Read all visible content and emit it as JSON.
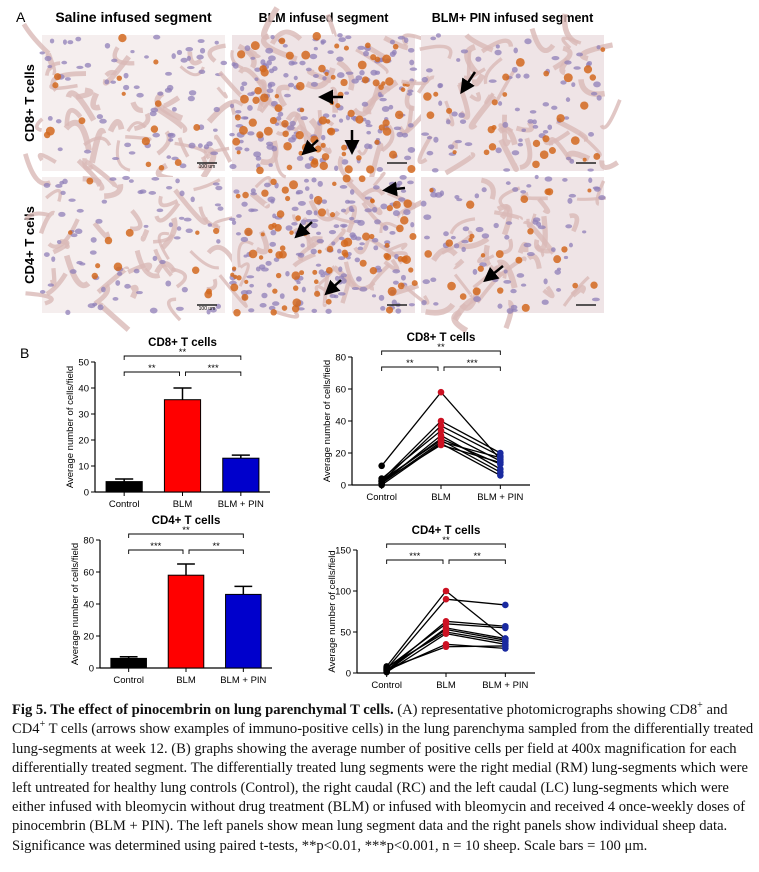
{
  "panel_a": {
    "label": "A",
    "columns": [
      "Saline infused segment",
      "BLM infused segment",
      "BLM+ PIN infused segment"
    ],
    "rows": [
      "CD8+ T cells",
      "CD4+ T cells"
    ],
    "scale_labels": [
      "100 um",
      "100 um"
    ]
  },
  "panel_b_label": "B",
  "chart_data": [
    {
      "type": "bar",
      "title": "CD8+ T cells",
      "ylabel": "Average number of cells/field",
      "categories": [
        "Control",
        "BLM",
        "BLM + PIN"
      ],
      "values": [
        4,
        35.5,
        13
      ],
      "errors": [
        1,
        4.5,
        1.2
      ],
      "colors": [
        "#000000",
        "#ff0000",
        "#0000cc"
      ],
      "ylim": [
        0,
        50
      ],
      "yticks": [
        0,
        10,
        20,
        30,
        40,
        50
      ],
      "significance": [
        {
          "label": "**",
          "span": [
            "Control",
            "BLM + PIN"
          ]
        },
        {
          "label": "**",
          "span": [
            "Control",
            "BLM"
          ]
        },
        {
          "label": "***",
          "span": [
            "BLM",
            "BLM + PIN"
          ]
        }
      ]
    },
    {
      "type": "line",
      "title": "CD8+ T cells",
      "ylabel": "Average number of cells/field",
      "categories": [
        "Control",
        "BLM",
        "BLM + PIN"
      ],
      "point_colors": [
        "#000000",
        "#cc1122",
        "#1a2aa0"
      ],
      "series": [
        {
          "values": [
            12,
            58,
            16
          ]
        },
        {
          "values": [
            3,
            40,
            20
          ]
        },
        {
          "values": [
            2,
            37,
            18
          ]
        },
        {
          "values": [
            4,
            34,
            15
          ]
        },
        {
          "values": [
            1,
            31,
            10
          ]
        },
        {
          "values": [
            2,
            29,
            13
          ]
        },
        {
          "values": [
            3,
            28,
            8
          ]
        },
        {
          "values": [
            1,
            27,
            17
          ]
        },
        {
          "values": [
            0,
            26,
            6
          ]
        },
        {
          "values": [
            2,
            25,
            14
          ]
        }
      ],
      "ylim": [
        0,
        80
      ],
      "yticks": [
        0,
        20,
        40,
        60,
        80
      ],
      "significance": [
        {
          "label": "**",
          "span": [
            "Control",
            "BLM + PIN"
          ]
        },
        {
          "label": "**",
          "span": [
            "Control",
            "BLM"
          ]
        },
        {
          "label": "***",
          "span": [
            "BLM",
            "BLM + PIN"
          ]
        }
      ]
    },
    {
      "type": "bar",
      "title": "CD4+ T cells",
      "ylabel": "Average number of cells/field",
      "categories": [
        "Control",
        "BLM",
        "BLM + PIN"
      ],
      "values": [
        6,
        58,
        46
      ],
      "errors": [
        1,
        7,
        5
      ],
      "colors": [
        "#000000",
        "#ff0000",
        "#0000cc"
      ],
      "ylim": [
        0,
        80
      ],
      "yticks": [
        0,
        20,
        40,
        60,
        80
      ],
      "significance": [
        {
          "label": "**",
          "span": [
            "Control",
            "BLM + PIN"
          ]
        },
        {
          "label": "***",
          "span": [
            "Control",
            "BLM"
          ]
        },
        {
          "label": "**",
          "span": [
            "BLM",
            "BLM + PIN"
          ]
        }
      ]
    },
    {
      "type": "line",
      "title": "CD4+ T cells",
      "ylabel": "Average number of cells/field",
      "categories": [
        "Control",
        "BLM",
        "BLM + PIN"
      ],
      "point_colors": [
        "#000000",
        "#cc1122",
        "#1a2aa0"
      ],
      "series": [
        {
          "values": [
            8,
            100,
            42
          ]
        },
        {
          "values": [
            5,
            90,
            83
          ]
        },
        {
          "values": [
            3,
            63,
            57
          ]
        },
        {
          "values": [
            6,
            60,
            55
          ]
        },
        {
          "values": [
            2,
            55,
            42
          ]
        },
        {
          "values": [
            4,
            53,
            40
          ]
        },
        {
          "values": [
            7,
            50,
            38
          ]
        },
        {
          "values": [
            1,
            48,
            35
          ]
        },
        {
          "values": [
            3,
            35,
            30
          ]
        },
        {
          "values": [
            5,
            32,
            33
          ]
        }
      ],
      "ylim": [
        0,
        150
      ],
      "yticks": [
        0,
        50,
        100,
        150
      ],
      "significance": [
        {
          "label": "**",
          "span": [
            "Control",
            "BLM + PIN"
          ]
        },
        {
          "label": "***",
          "span": [
            "Control",
            "BLM"
          ]
        },
        {
          "label": "**",
          "span": [
            "BLM",
            "BLM + PIN"
          ]
        }
      ]
    }
  ],
  "caption": {
    "title": "Fig 5. The effect of pinocembrin on lung parenchymal T cells.",
    "segments": [
      {
        "text": " (A) representative photomicrographs showing CD8"
      },
      {
        "text": "+",
        "style": "sup"
      },
      {
        "text": " and CD4"
      },
      {
        "text": "+",
        "style": "sup"
      },
      {
        "text": " T cells (arrows show examples of immuno-positive cells) in the lung parenchyma sampled from the differentially treated lung-segments at week 12. (B) graphs showing the average number of positive cells per field at 400x magnification for each differentially treated segment. The differentially treated lung segments were the right medial (RM) lung-segments which were left untreated for healthy lung controls (Control), the right caudal (RC) and the left caudal (LC) lung-segments which were either infused with bleomycin without drug treatment (BLM) or infused with bleomycin and received 4 once-weekly doses of pinocembrin (BLM + PIN). The left panels show mean lung segment data and the right panels show individual sheep data. Significance was determined using paired t-tests, **p<0.01, ***p<0.001, n = 10 sheep. Scale bars = 100 μm."
      }
    ]
  }
}
